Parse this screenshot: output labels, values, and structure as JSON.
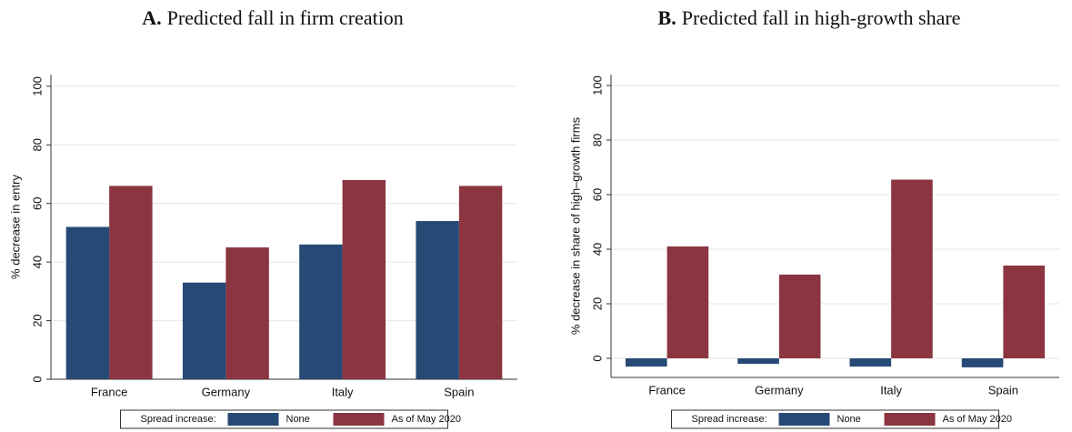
{
  "chart_data": [
    {
      "type": "bar",
      "panel": "A.",
      "title": "Predicted fall in firm creation",
      "y_label": "% decrease in entry",
      "categories": [
        "France",
        "Germany",
        "Italy",
        "Spain"
      ],
      "series": [
        {
          "name": "None",
          "color": "#264a75",
          "values": [
            52,
            33,
            46,
            54
          ]
        },
        {
          "name": "As of May 2020",
          "color": "#8b3541",
          "values": [
            66,
            45,
            68,
            66
          ]
        }
      ],
      "legend_title": "Spread increase:",
      "ylim": [
        0,
        104
      ],
      "yticks": [
        0,
        20,
        40,
        60,
        80,
        100
      ],
      "grid": true
    },
    {
      "type": "bar",
      "panel": "B.",
      "title": "Predicted fall in high-growth share",
      "y_label": "% decrease in share of high–growth firms",
      "categories": [
        "France",
        "Germany",
        "Italy",
        "Spain"
      ],
      "series": [
        {
          "name": "None",
          "color": "#264a75",
          "values": [
            -3,
            -2,
            -3,
            -3.3
          ]
        },
        {
          "name": "As of May 2020",
          "color": "#8b3541",
          "values": [
            41,
            30.7,
            65.5,
            34
          ]
        }
      ],
      "legend_title": "Spread increase:",
      "ylim": [
        -7,
        104
      ],
      "yticks": [
        0,
        20,
        40,
        60,
        80,
        100
      ],
      "grid": true
    }
  ]
}
